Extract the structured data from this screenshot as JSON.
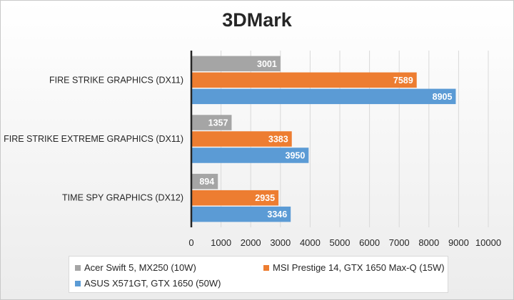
{
  "chart_data": {
    "type": "bar",
    "orientation": "horizontal",
    "title": "3DMark",
    "categories": [
      "FIRE STRIKE GRAPHICS (DX11)",
      "FIRE STRIKE EXTREME GRAPHICS (DX11)",
      "TIME SPY GRAPHICS (DX12)"
    ],
    "series": [
      {
        "name": "Acer Swift 5, MX250 (10W)",
        "color": "#a5a5a5",
        "values": [
          3001,
          1357,
          894
        ]
      },
      {
        "name": "MSI Prestige 14, GTX 1650 Max-Q (15W)",
        "color": "#ed7d31",
        "values": [
          7589,
          3383,
          2935
        ]
      },
      {
        "name": "ASUS X571GT, GTX 1650 (50W)",
        "color": "#5b9bd5",
        "values": [
          8905,
          3950,
          3346
        ]
      }
    ],
    "xlim": [
      0,
      10000
    ],
    "xticks": [
      0,
      1000,
      2000,
      3000,
      4000,
      5000,
      6000,
      7000,
      8000,
      9000,
      10000
    ],
    "grid": true,
    "legend_position": "bottom"
  }
}
